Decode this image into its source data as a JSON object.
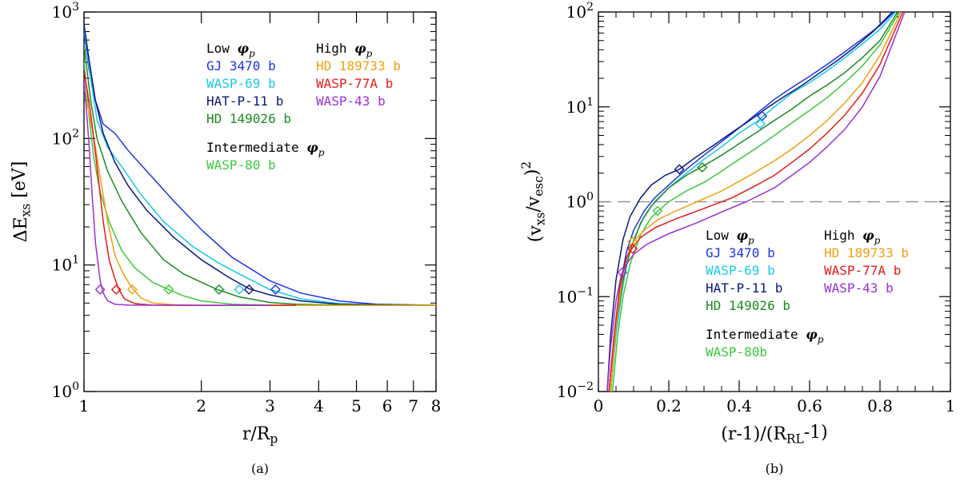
{
  "panels": [
    {
      "caption": "(a)",
      "chart_data": {
        "type": "line",
        "xlabel": "r/R_p",
        "ylabel": "ΔE_xs [eV]",
        "xscale": "log",
        "yscale": "log",
        "xlim": [
          1,
          8
        ],
        "ylim": [
          1,
          1000
        ],
        "xticks": [
          1,
          2,
          3,
          4,
          5,
          6,
          7,
          8
        ],
        "yticks": [
          1,
          10,
          100,
          1000
        ],
        "ytick_labels": [
          {
            "base": "10",
            "exp": "0"
          },
          {
            "base": "10",
            "exp": "1"
          },
          {
            "base": "10",
            "exp": "2"
          },
          {
            "base": "10",
            "exp": "3"
          }
        ],
        "legend": {
          "placement": "top-right",
          "groups": [
            {
              "header": "Low",
              "entries": [
                "GJ 3470 b",
                "WASP-69 b",
                "HAT-P-11 b",
                "HD 149026 b"
              ]
            },
            {
              "header": "High",
              "entries": [
                "HD 189733 b",
                "WASP-77A b",
                "WASP-43 b"
              ]
            },
            {
              "header": "Intermediate",
              "entries": [
                "WASP-80 b"
              ]
            }
          ]
        },
        "series": [
          {
            "name": "GJ 3470 b",
            "color": "#1f33e6",
            "x": [
              1.0,
              1.03,
              1.07,
              1.12,
              1.2,
              1.3,
              1.45,
              1.7,
              2.0,
              2.4,
              3.0,
              3.6,
              4.5,
              5.6,
              8.0
            ],
            "y": [
              700,
              350,
              200,
              130,
              110,
              80,
              55,
              32,
              19,
              11.5,
              7.5,
              6.0,
              5.2,
              4.9,
              4.8
            ],
            "marker": {
              "x": 3.1,
              "y": 6.4
            }
          },
          {
            "name": "WASP-69 b",
            "color": "#17c9e6",
            "x": [
              1.0,
              1.04,
              1.08,
              1.15,
              1.25,
              1.4,
              1.6,
              1.9,
              2.2,
              2.5,
              3.0,
              3.6,
              4.5,
              5.5,
              8.0
            ],
            "y": [
              750,
              300,
              140,
              85,
              60,
              36,
              22,
              14,
              10.5,
              8.5,
              6.4,
              5.4,
              4.95,
              4.85,
              4.8
            ],
            "marker": {
              "x": 2.5,
              "y": 6.4
            }
          },
          {
            "name": "HAT-P-11 b",
            "color": "#0a1a7a",
            "x": [
              1.0,
              1.03,
              1.07,
              1.12,
              1.2,
              1.3,
              1.45,
              1.7,
              2.0,
              2.35,
              2.65,
              3.0,
              3.6,
              4.5,
              5.7,
              8.0
            ],
            "y": [
              800,
              420,
              200,
              110,
              65,
              42,
              27,
              16.5,
              11,
              8.0,
              6.5,
              5.8,
              5.2,
              4.9,
              4.85,
              4.8
            ],
            "marker": {
              "x": 2.65,
              "y": 6.4
            }
          },
          {
            "name": "HD 149026 b",
            "color": "#1e8a22",
            "x": [
              1.0,
              1.04,
              1.08,
              1.15,
              1.25,
              1.4,
              1.6,
              1.8,
              2.0,
              2.2,
              2.5,
              3.0,
              3.5,
              4.0,
              5.5,
              8.0
            ],
            "y": [
              550,
              200,
              100,
              55,
              32,
              18,
              11,
              8.5,
              7.3,
              6.4,
              5.6,
              5.05,
              4.9,
              4.85,
              4.8,
              4.8
            ],
            "marker": {
              "x": 2.22,
              "y": 6.4
            }
          },
          {
            "name": "WASP-80 b",
            "color": "#3cc83c",
            "x": [
              1.0,
              1.03,
              1.06,
              1.1,
              1.16,
              1.25,
              1.35,
              1.5,
              1.65,
              1.8,
              2.0,
              2.4,
              3.0,
              3.6,
              8.0
            ],
            "y": [
              400,
              150,
              70,
              38,
              22,
              13,
              9.5,
              7.3,
              6.4,
              5.7,
              5.2,
              4.9,
              4.82,
              4.8,
              4.8
            ],
            "marker": {
              "x": 1.65,
              "y": 6.4
            }
          },
          {
            "name": "HD 189733 b",
            "color": "#f0a010",
            "x": [
              1.0,
              1.05,
              1.1,
              1.15,
              1.2,
              1.25,
              1.3,
              1.34,
              1.4,
              1.5,
              1.7,
              2.0,
              2.5,
              8.0
            ],
            "y": [
              250,
              120,
              50,
              22,
              12,
              9.0,
              7.3,
              6.4,
              5.5,
              5.0,
              4.85,
              4.8,
              4.8,
              4.8
            ],
            "marker": {
              "x": 1.33,
              "y": 6.4
            }
          },
          {
            "name": "WASP-77A b",
            "color": "#e81a1a",
            "x": [
              1.0,
              1.04,
              1.08,
              1.12,
              1.16,
              1.2,
              1.23,
              1.27,
              1.35,
              1.5,
              2.0,
              3.5
            ],
            "y": [
              350,
              160,
              60,
              22,
              11,
              7.8,
              6.4,
              5.4,
              4.95,
              4.82,
              4.8,
              4.8
            ],
            "marker": {
              "x": 1.21,
              "y": 6.4
            }
          },
          {
            "name": "WASP-43 b",
            "color": "#9a30d8",
            "x": [
              1.0,
              1.03,
              1.05,
              1.07,
              1.09,
              1.1,
              1.12,
              1.15,
              1.2,
              1.3,
              2.0,
              3.0
            ],
            "y": [
              300,
              90,
              35,
              15,
              9.5,
              7.5,
              6.0,
              5.2,
              4.9,
              4.82,
              4.8,
              4.8
            ],
            "marker": {
              "x": 1.1,
              "y": 6.4
            }
          }
        ]
      }
    },
    {
      "caption": "(b)",
      "chart_data": {
        "type": "line",
        "xlabel": "(r-1)/(R_RL-1)",
        "ylabel": "(v_xs/v_esc)^2",
        "xscale": "linear",
        "yscale": "log",
        "xlim": [
          0,
          1
        ],
        "ylim": [
          0.01,
          100
        ],
        "xticks": [
          0,
          0.2,
          0.4,
          0.6,
          0.8,
          1
        ],
        "xtick_labels": [
          "0",
          "0.2",
          "0.4",
          "0.6",
          "0.8",
          "1"
        ],
        "yticks": [
          0.01,
          0.1,
          1,
          10,
          100
        ],
        "ytick_labels": [
          {
            "base": "10",
            "exp": "−2"
          },
          {
            "base": "10",
            "exp": "−1"
          },
          {
            "base": "10",
            "exp": "0"
          },
          {
            "base": "10",
            "exp": "1"
          },
          {
            "base": "10",
            "exp": "2"
          }
        ],
        "reference_line": {
          "y": 1,
          "style": "dashed"
        },
        "legend": {
          "placement": "lower-right",
          "groups": [
            {
              "header": "Low",
              "entries": [
                "GJ 3470 b",
                "WASP-69 b",
                "HAT-P-11 b",
                "HD 149026 b"
              ]
            },
            {
              "header": "High",
              "entries": [
                "HD 189733 b",
                "WASP-77A b",
                "WASP-43 b"
              ]
            },
            {
              "header": "Intermediate",
              "entries": [
                "WASP-80b"
              ]
            }
          ]
        },
        "series": [
          {
            "name": "GJ 3470 b",
            "color": "#1f33e6",
            "x": [
              0.03,
              0.045,
              0.06,
              0.08,
              0.1,
              0.13,
              0.16,
              0.2,
              0.25,
              0.3,
              0.35,
              0.4,
              0.45,
              0.5,
              0.55,
              0.6,
              0.65,
              0.7,
              0.75,
              0.8,
              0.84
            ],
            "y": [
              0.01,
              0.04,
              0.12,
              0.3,
              0.5,
              0.8,
              1.1,
              1.5,
              2.2,
              3.1,
              4.3,
              6.0,
              8.5,
              12,
              16,
              21,
              28,
              38,
              52,
              72,
              100
            ],
            "marker": {
              "x": 0.465,
              "y": 8.0
            }
          },
          {
            "name": "WASP-69 b",
            "color": "#17c9e6",
            "x": [
              0.035,
              0.05,
              0.065,
              0.08,
              0.1,
              0.13,
              0.16,
              0.2,
              0.25,
              0.3,
              0.35,
              0.4,
              0.45,
              0.5,
              0.55,
              0.6,
              0.65,
              0.7,
              0.75,
              0.8,
              0.845
            ],
            "y": [
              0.01,
              0.04,
              0.1,
              0.22,
              0.4,
              0.7,
              1.0,
              1.4,
              2.0,
              2.8,
              3.8,
              5.3,
              7.0,
              10,
              14,
              18,
              24,
              33,
              46,
              66,
              100
            ],
            "marker": {
              "x": 0.46,
              "y": 6.6
            }
          },
          {
            "name": "HAT-P-11 b",
            "color": "#0a1a7a",
            "x": [
              0.025,
              0.035,
              0.05,
              0.07,
              0.09,
              0.12,
              0.15,
              0.19,
              0.23,
              0.28,
              0.33,
              0.38,
              0.43,
              0.48,
              0.53,
              0.58,
              0.63,
              0.68,
              0.73,
              0.78,
              0.835
            ],
            "y": [
              0.01,
              0.04,
              0.15,
              0.4,
              0.7,
              1.1,
              1.5,
              1.9,
              2.2,
              3.0,
              4.0,
              5.4,
              7.2,
              9.8,
              13,
              17,
              23,
              31,
              43,
              62,
              100
            ],
            "marker": {
              "x": 0.23,
              "y": 2.2
            }
          },
          {
            "name": "HD 149026 b",
            "color": "#1e8a22",
            "x": [
              0.035,
              0.05,
              0.07,
              0.09,
              0.12,
              0.15,
              0.2,
              0.25,
              0.3,
              0.35,
              0.4,
              0.45,
              0.5,
              0.55,
              0.6,
              0.65,
              0.7,
              0.75,
              0.8,
              0.85
            ],
            "y": [
              0.01,
              0.05,
              0.15,
              0.3,
              0.6,
              0.9,
              1.4,
              1.9,
              2.4,
              3.1,
              4.1,
              5.4,
              7.2,
              9.5,
              13,
              17,
              23,
              33,
              50,
              100
            ],
            "marker": {
              "x": 0.295,
              "y": 2.3
            }
          },
          {
            "name": "WASP-80 b",
            "color": "#3cc83c",
            "x": [
              0.04,
              0.055,
              0.07,
              0.09,
              0.12,
              0.15,
              0.17,
              0.2,
              0.25,
              0.3,
              0.35,
              0.4,
              0.45,
              0.5,
              0.55,
              0.6,
              0.65,
              0.7,
              0.75,
              0.8,
              0.855
            ],
            "y": [
              0.01,
              0.04,
              0.1,
              0.22,
              0.45,
              0.68,
              0.8,
              1.0,
              1.3,
              1.6,
              2.1,
              2.8,
              3.7,
              5.0,
              6.8,
              9.2,
              12.5,
              18,
              27,
              45,
              100
            ],
            "marker": {
              "x": 0.168,
              "y": 0.8
            }
          },
          {
            "name": "HD 189733 b",
            "color": "#f0a010",
            "x": [
              0.035,
              0.05,
              0.07,
              0.09,
              0.1,
              0.13,
              0.17,
              0.22,
              0.28,
              0.35,
              0.42,
              0.5,
              0.55,
              0.6,
              0.65,
              0.7,
              0.75,
              0.8,
              0.86
            ],
            "y": [
              0.01,
              0.05,
              0.18,
              0.34,
              0.38,
              0.5,
              0.65,
              0.8,
              1.0,
              1.3,
              1.8,
              2.7,
              3.6,
              5.0,
              7.2,
              11,
              18,
              35,
              100
            ],
            "marker": {
              "x": 0.097,
              "y": 0.38
            }
          },
          {
            "name": "WASP-77A b",
            "color": "#e81a1a",
            "x": [
              0.03,
              0.045,
              0.06,
              0.08,
              0.095,
              0.12,
              0.16,
              0.22,
              0.3,
              0.38,
              0.45,
              0.5,
              0.55,
              0.6,
              0.65,
              0.7,
              0.75,
              0.8,
              0.865
            ],
            "y": [
              0.01,
              0.04,
              0.12,
              0.26,
              0.32,
              0.42,
              0.53,
              0.66,
              0.85,
              1.1,
              1.5,
              1.9,
              2.6,
              3.6,
              5.3,
              8.2,
              14,
              28,
              100
            ],
            "marker": {
              "x": 0.097,
              "y": 0.32
            }
          },
          {
            "name": "WASP-43 b",
            "color": "#9a30d8",
            "x": [
              0.025,
              0.035,
              0.05,
              0.065,
              0.08,
              0.1,
              0.14,
              0.2,
              0.28,
              0.35,
              0.42,
              0.5,
              0.55,
              0.6,
              0.65,
              0.7,
              0.75,
              0.8,
              0.87
            ],
            "y": [
              0.01,
              0.03,
              0.09,
              0.17,
              0.22,
              0.28,
              0.36,
              0.46,
              0.6,
              0.78,
              1.0,
              1.4,
              1.9,
              2.6,
              3.8,
              5.8,
              10,
              21,
              100
            ],
            "marker": {
              "x": 0.068,
              "y": 0.18
            }
          }
        ]
      }
    }
  ]
}
